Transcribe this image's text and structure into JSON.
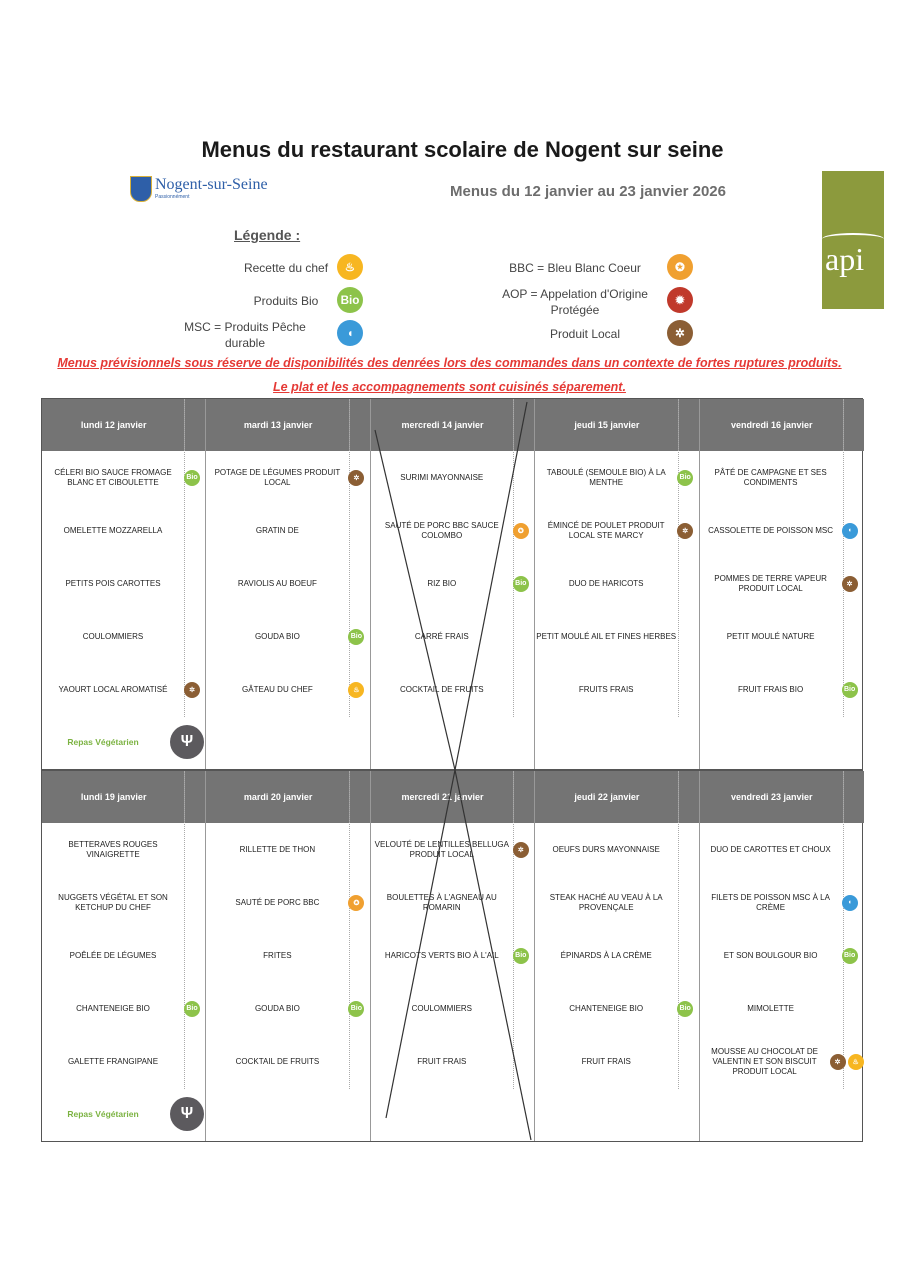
{
  "title": "Menus du restaurant scolaire de Nogent sur seine",
  "logo": {
    "name": "Nogent-sur-Seine",
    "tagline": "Passionnément"
  },
  "subtitle": "Menus du 12 janvier au 23 janvier 2026",
  "api_logo": "api",
  "legend": {
    "title": "Légende :",
    "items": [
      {
        "label": "Recette du chef",
        "icon": "chef"
      },
      {
        "label": "Produits Bio",
        "icon": "bio"
      },
      {
        "label": "MSC = Produits Pêche durable",
        "icon": "msc"
      },
      {
        "label": "BBC = Bleu Blanc Coeur",
        "icon": "bbc"
      },
      {
        "label": "AOP = Appelation d'Origine Protégée",
        "icon": "aop"
      },
      {
        "label": "Produit Local",
        "icon": "local"
      }
    ]
  },
  "warnings": [
    "Menus prévisionnels sous réserve de disponibilités des denrées lors des commandes dans un contexte de fortes ruptures produits.",
    "Le plat et les accompagnements sont cuisinés séparement."
  ],
  "icon_colors": {
    "bio": "#8dc34a",
    "local": "#8b5e34",
    "bbc": "#f0a030",
    "msc": "#3a9ad9",
    "chef": "#f7b621",
    "aop": "#c0392b",
    "veg": "#5c5a5e"
  },
  "bio_text": "Bio",
  "vegetarian_label": "Repas Végétarien",
  "weeks": [
    {
      "crossed_day": 2,
      "days": [
        {
          "label": "lundi 12 janvier",
          "items": [
            {
              "text": "CÉLERI BIO SAUCE FROMAGE BLANC ET CIBOULETTE",
              "icons": [
                "bio"
              ]
            },
            {
              "text": "OMELETTE MOZZARELLA",
              "icons": []
            },
            {
              "text": "PETITS POIS CAROTTES",
              "icons": []
            },
            {
              "text": "COULOMMIERS",
              "icons": []
            },
            {
              "text": "YAOURT LOCAL AROMATISÉ",
              "icons": [
                "local"
              ]
            }
          ],
          "vegetarian": true
        },
        {
          "label": "mardi 13 janvier",
          "items": [
            {
              "text": "POTAGE DE LÉGUMES PRODUIT LOCAL",
              "icons": [
                "local"
              ]
            },
            {
              "text": "GRATIN DE",
              "icons": []
            },
            {
              "text": "RAVIOLIS AU BOEUF",
              "icons": []
            },
            {
              "text": "GOUDA BIO",
              "icons": [
                "bio"
              ]
            },
            {
              "text": "GÂTEAU  DU CHEF",
              "icons": [
                "chef"
              ]
            }
          ]
        },
        {
          "label": "mercredi 14 janvier",
          "items": [
            {
              "text": "SURIMI MAYONNAISE",
              "icons": []
            },
            {
              "text": "SAUTÉ DE PORC BBC SAUCE COLOMBO",
              "icons": [
                "bbc"
              ]
            },
            {
              "text": "RIZ BIO",
              "icons": [
                "bio"
              ]
            },
            {
              "text": "CARRÉ FRAIS",
              "icons": []
            },
            {
              "text": "COCKTAIL DE FRUITS",
              "icons": []
            }
          ]
        },
        {
          "label": "jeudi 15 janvier",
          "items": [
            {
              "text": "TABOULÉ (SEMOULE BIO) À LA MENTHE",
              "icons": [
                "bio"
              ]
            },
            {
              "text": "ÉMINCÉ DE POULET PRODUIT LOCAL STE MARCY",
              "icons": [
                "local"
              ]
            },
            {
              "text": "DUO DE HARICOTS",
              "icons": []
            },
            {
              "text": "PETIT MOULÉ AIL ET FINES HERBES",
              "icons": []
            },
            {
              "text": "FRUITS FRAIS",
              "icons": []
            }
          ]
        },
        {
          "label": "vendredi 16 janvier",
          "items": [
            {
              "text": "PÂTÉ DE CAMPAGNE ET SES CONDIMENTS",
              "icons": []
            },
            {
              "text": "CASSOLETTE DE POISSON MSC",
              "icons": [
                "msc"
              ]
            },
            {
              "text": "POMMES DE TERRE VAPEUR PRODUIT LOCAL",
              "icons": [
                "local"
              ]
            },
            {
              "text": "PETIT MOULÉ NATURE",
              "icons": []
            },
            {
              "text": "FRUIT FRAIS BIO",
              "icons": [
                "bio"
              ]
            }
          ]
        }
      ]
    },
    {
      "crossed_day": 2,
      "days": [
        {
          "label": "lundi 19 janvier",
          "items": [
            {
              "text": "BETTERAVES ROUGES VINAIGRETTE",
              "icons": []
            },
            {
              "text": "NUGGETS VÉGÉTAL ET SON KETCHUP DU CHEF",
              "icons": []
            },
            {
              "text": "POÊLÉE DE LÉGUMES",
              "icons": []
            },
            {
              "text": "CHANTENEIGE BIO",
              "icons": [
                "bio"
              ]
            },
            {
              "text": "GALETTE FRANGIPANE",
              "icons": []
            }
          ],
          "vegetarian": true
        },
        {
          "label": "mardi 20 janvier",
          "items": [
            {
              "text": "RILLETTE DE THON",
              "icons": []
            },
            {
              "text": "SAUTÉ DE PORC BBC",
              "icons": [
                "bbc"
              ]
            },
            {
              "text": "FRITES",
              "icons": []
            },
            {
              "text": "GOUDA BIO",
              "icons": [
                "bio"
              ]
            },
            {
              "text": "COCKTAIL DE FRUITS",
              "icons": []
            }
          ]
        },
        {
          "label": "mercredi 21 janvier",
          "items": [
            {
              "text": "VELOUTÉ DE LENTILLES BELLUGA PRODUIT LOCAL",
              "icons": [
                "local"
              ]
            },
            {
              "text": "BOULETTES À L'AGNEAU AU ROMARIN",
              "icons": []
            },
            {
              "text": "HARICOTS VERTS BIO À L'AIL",
              "icons": [
                "bio"
              ]
            },
            {
              "text": "COULOMMIERS",
              "icons": []
            },
            {
              "text": "FRUIT FRAIS",
              "icons": []
            }
          ]
        },
        {
          "label": "jeudi 22 janvier",
          "items": [
            {
              "text": "OEUFS DURS MAYONNAISE",
              "icons": []
            },
            {
              "text": "STEAK HACHÉ AU VEAU À LA PROVENÇALE",
              "icons": []
            },
            {
              "text": "ÉPINARDS À LA CRÈME",
              "icons": []
            },
            {
              "text": "CHANTENEIGE BIO",
              "icons": [
                "bio"
              ]
            },
            {
              "text": "FRUIT FRAIS",
              "icons": []
            }
          ]
        },
        {
          "label": "vendredi 23 janvier",
          "items": [
            {
              "text": "DUO DE CAROTTES ET CHOUX",
              "icons": []
            },
            {
              "text": "FILETS DE POISSON MSC À LA CRÈME",
              "icons": [
                "msc"
              ]
            },
            {
              "text": "ET SON BOULGOUR BIO",
              "icons": [
                "bio"
              ]
            },
            {
              "text": "MIMOLETTE",
              "icons": []
            },
            {
              "text": "MOUSSE AU CHOCOLAT DE VALENTIN ET SON BISCUIT PRODUIT LOCAL",
              "icons": [
                "local",
                "chef"
              ]
            }
          ]
        }
      ]
    }
  ]
}
